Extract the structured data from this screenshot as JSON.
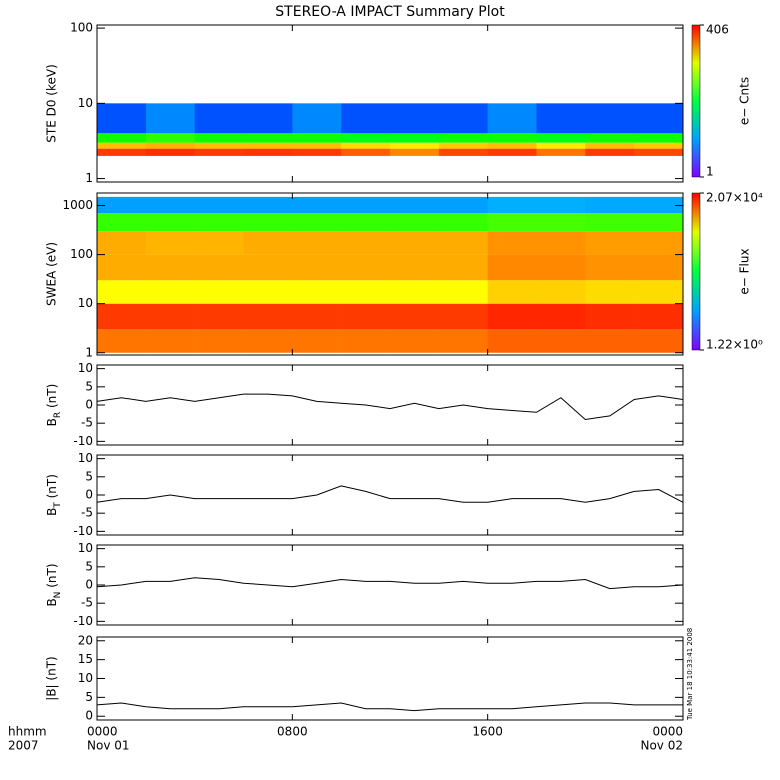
{
  "title": "STEREO-A IMPACT Summary Plot",
  "timestamp": "Tue Mar 18 10:33:41 2008",
  "xaxis": {
    "xlim": [
      0,
      24
    ],
    "xticks": [
      {
        "value": 0,
        "label": "0000"
      },
      {
        "value": 8,
        "label": "0800"
      },
      {
        "value": 16,
        "label": "1600"
      },
      {
        "value": 24,
        "label": "0000"
      }
    ],
    "dates": [
      {
        "value": 0,
        "label": "Nov 01"
      },
      {
        "value": 24,
        "label": "Nov 02"
      }
    ],
    "row_labels": [
      "hhmm",
      "2007"
    ]
  },
  "chart_data": [
    {
      "type": "heatmap",
      "ylabel": "STE D0 (keV)",
      "log": true,
      "ylim": [
        0.9,
        110
      ],
      "yticks": [
        1,
        10,
        100
      ],
      "x_edges": [
        0,
        2,
        4,
        6,
        8,
        10,
        12,
        14,
        16,
        18,
        20,
        22,
        24
      ],
      "y_edges": [
        2,
        2.5,
        3,
        4,
        10
      ],
      "z": [
        [
          300,
          320,
          300,
          310,
          300,
          250,
          200,
          280,
          300,
          220,
          300,
          280
        ],
        [
          150,
          160,
          150,
          150,
          150,
          130,
          120,
          140,
          150,
          120,
          150,
          140
        ],
        [
          30,
          35,
          30,
          30,
          30,
          25,
          25,
          30,
          30,
          25,
          30,
          30
        ],
        [
          3,
          4,
          3,
          3,
          4,
          3,
          3,
          3,
          4,
          3,
          3,
          3
        ]
      ],
      "clim": [
        1,
        406
      ],
      "clog": true,
      "cticks": [
        1,
        406
      ],
      "clabel": "e− Cnts"
    },
    {
      "type": "heatmap",
      "ylabel": "SWEA (eV)",
      "log": true,
      "ylim": [
        0.9,
        1800
      ],
      "yticks": [
        1,
        10,
        100,
        1000
      ],
      "x_edges": [
        0,
        2,
        4,
        6,
        8,
        10,
        12,
        14,
        16,
        18,
        20,
        22,
        24
      ],
      "y_edges": [
        1,
        3,
        10,
        30,
        100,
        300,
        700,
        1500
      ],
      "z": [
        [
          7700,
          7700,
          7700,
          7700,
          7700,
          7700,
          7700,
          7700,
          9000,
          9000,
          9000,
          9000
        ],
        [
          12600,
          12600,
          12600,
          12600,
          12600,
          12600,
          12600,
          12600,
          15000,
          15000,
          14000,
          14000
        ],
        [
          2400,
          2400,
          2400,
          2400,
          2400,
          2400,
          2400,
          2400,
          3500,
          3500,
          3200,
          3200
        ],
        [
          4800,
          4800,
          4800,
          4800,
          4800,
          4800,
          4800,
          4800,
          6500,
          6500,
          6000,
          6000
        ],
        [
          4800,
          4500,
          4500,
          4800,
          4800,
          4800,
          4800,
          4800,
          6000,
          6000,
          5500,
          5500
        ],
        [
          430,
          430,
          430,
          430,
          430,
          430,
          430,
          430,
          500,
          500,
          480,
          480
        ],
        [
          14,
          14,
          14,
          14,
          14,
          14,
          14,
          14,
          16,
          16,
          15,
          15
        ]
      ],
      "clim": [
        1.22,
        20700
      ],
      "clog": true,
      "cticks": [
        {
          "value": 1.22,
          "label": "1.22×10⁰"
        },
        {
          "value": 20700,
          "label": "2.07×10⁴"
        }
      ],
      "clabel": "e− Flux"
    },
    {
      "type": "line",
      "ylabel": [
        "B",
        "R",
        " (nT)"
      ],
      "ylim": [
        -11,
        11
      ],
      "yticks": [
        -10,
        -5,
        0,
        5,
        10
      ],
      "color": "#000000",
      "x": [
        0,
        1,
        2,
        3,
        4,
        5,
        6,
        7,
        8,
        9,
        10,
        11,
        12,
        13,
        14,
        15,
        16,
        17,
        18,
        19,
        20,
        21,
        22,
        23,
        24
      ],
      "values": [
        1,
        2,
        1,
        2,
        1,
        2,
        3,
        3,
        2.5,
        1,
        0.5,
        0,
        -1,
        0.5,
        -1,
        0,
        -1,
        -1.5,
        -2,
        2,
        -4,
        -3,
        1.5,
        2.5,
        1.5
      ]
    },
    {
      "type": "line",
      "ylabel": [
        "B",
        "T",
        " (nT)"
      ],
      "ylim": [
        -11,
        11
      ],
      "yticks": [
        -10,
        -5,
        0,
        5,
        10
      ],
      "color": "#000000",
      "x": [
        0,
        1,
        2,
        3,
        4,
        5,
        6,
        7,
        8,
        9,
        10,
        11,
        12,
        13,
        14,
        15,
        16,
        17,
        18,
        19,
        20,
        21,
        22,
        23,
        24
      ],
      "values": [
        -2,
        -1,
        -1,
        0,
        -1,
        -1,
        -1,
        -1,
        -1,
        0,
        2.5,
        1,
        -1,
        -1,
        -1,
        -2,
        -2,
        -1,
        -1,
        -1,
        -2,
        -1,
        1,
        1.5,
        -2
      ]
    },
    {
      "type": "line",
      "ylabel": [
        "B",
        "N",
        " (nT)"
      ],
      "ylim": [
        -11,
        11
      ],
      "yticks": [
        -10,
        -5,
        0,
        5,
        10
      ],
      "color": "#000000",
      "x": [
        0,
        1,
        2,
        3,
        4,
        5,
        6,
        7,
        8,
        9,
        10,
        11,
        12,
        13,
        14,
        15,
        16,
        17,
        18,
        19,
        20,
        21,
        22,
        23,
        24
      ],
      "values": [
        -0.5,
        0,
        1,
        1,
        2,
        1.5,
        0.5,
        0,
        -0.5,
        0.5,
        1.5,
        1,
        1,
        0.5,
        0.5,
        1,
        0.5,
        0.5,
        1,
        1,
        1.5,
        -1,
        -0.5,
        -0.5,
        0
      ]
    },
    {
      "type": "line",
      "ylabel": "|B| (nT)",
      "ylim": [
        -1,
        21
      ],
      "yticks": [
        0,
        5,
        10,
        15,
        20
      ],
      "color": "#000000",
      "x": [
        0,
        1,
        2,
        3,
        4,
        5,
        6,
        7,
        8,
        9,
        10,
        11,
        12,
        13,
        14,
        15,
        16,
        17,
        18,
        19,
        20,
        21,
        22,
        23,
        24
      ],
      "values": [
        3,
        3.5,
        2.5,
        2,
        2,
        2,
        2.5,
        2.5,
        2.5,
        3,
        3.5,
        2,
        2,
        1.5,
        2,
        2,
        2,
        2,
        2.5,
        3,
        3.5,
        3.5,
        3,
        3,
        3
      ]
    }
  ]
}
